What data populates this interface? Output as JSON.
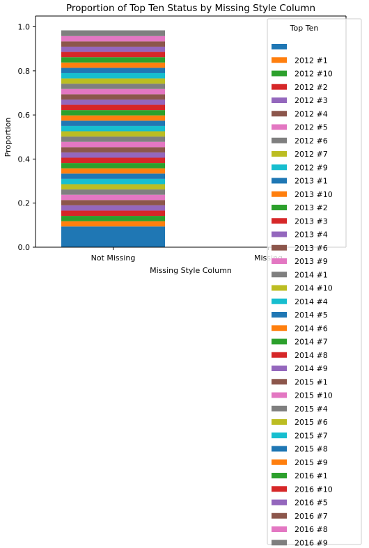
{
  "chart_data": {
    "type": "bar",
    "stacked": true,
    "title": "Proportion of Top Ten Status by Missing Style Column",
    "xlabel": "Missing Style Column",
    "ylabel": "Proportion",
    "categories": [
      "Not Missing",
      "Missing"
    ],
    "ylim": [
      0.0,
      1.0
    ],
    "yticks": [
      "0.0",
      "0.2",
      "0.4",
      "0.6",
      "0.8",
      "1.0"
    ],
    "grid": false,
    "legend": {
      "title": "Top Ten",
      "placement": "right (outside, overlapping axes)"
    },
    "series": [
      {
        "name": "",
        "values": [
          0.094,
          0
        ]
      },
      {
        "name": "2012 #1",
        "values": [
          0.024,
          0
        ]
      },
      {
        "name": "2012 #10",
        "values": [
          0.024,
          0
        ]
      },
      {
        "name": "2012 #2",
        "values": [
          0.024,
          0
        ]
      },
      {
        "name": "2012 #3",
        "values": [
          0.024,
          0
        ]
      },
      {
        "name": "2012 #4",
        "values": [
          0.024,
          0
        ]
      },
      {
        "name": "2012 #5",
        "values": [
          0.024,
          0
        ]
      },
      {
        "name": "2012 #6",
        "values": [
          0.024,
          0
        ]
      },
      {
        "name": "2012 #7",
        "values": [
          0.024,
          0
        ]
      },
      {
        "name": "2012 #9",
        "values": [
          0.024,
          0
        ]
      },
      {
        "name": "2013 #1",
        "values": [
          0.024,
          0
        ]
      },
      {
        "name": "2013 #10",
        "values": [
          0.024,
          0
        ]
      },
      {
        "name": "2013 #2",
        "values": [
          0.024,
          0
        ]
      },
      {
        "name": "2013 #3",
        "values": [
          0.024,
          0
        ]
      },
      {
        "name": "2013 #4",
        "values": [
          0.024,
          0
        ]
      },
      {
        "name": "2013 #6",
        "values": [
          0.024,
          0
        ]
      },
      {
        "name": "2013 #9",
        "values": [
          0.024,
          0
        ]
      },
      {
        "name": "2014 #1",
        "values": [
          0.024,
          0
        ]
      },
      {
        "name": "2014 #10",
        "values": [
          0.024,
          0
        ]
      },
      {
        "name": "2014 #4",
        "values": [
          0.024,
          0
        ]
      },
      {
        "name": "2014 #5",
        "values": [
          0.024,
          0
        ]
      },
      {
        "name": "2014 #6",
        "values": [
          0.024,
          0
        ]
      },
      {
        "name": "2014 #7",
        "values": [
          0.024,
          0
        ]
      },
      {
        "name": "2014 #8",
        "values": [
          0.024,
          0
        ]
      },
      {
        "name": "2014 #9",
        "values": [
          0.024,
          0
        ]
      },
      {
        "name": "2015 #1",
        "values": [
          0.024,
          0
        ]
      },
      {
        "name": "2015 #10",
        "values": [
          0.024,
          0
        ]
      },
      {
        "name": "2015 #4",
        "values": [
          0.024,
          0
        ]
      },
      {
        "name": "2015 #6",
        "values": [
          0.024,
          0
        ]
      },
      {
        "name": "2015 #7",
        "values": [
          0.024,
          0
        ]
      },
      {
        "name": "2015 #8",
        "values": [
          0.024,
          0
        ]
      },
      {
        "name": "2015 #9",
        "values": [
          0.024,
          0
        ]
      },
      {
        "name": "2016 #1",
        "values": [
          0.024,
          0
        ]
      },
      {
        "name": "2016 #10",
        "values": [
          0.024,
          0
        ]
      },
      {
        "name": "2016 #5",
        "values": [
          0.024,
          0
        ]
      },
      {
        "name": "2016 #7",
        "values": [
          0.024,
          0
        ]
      },
      {
        "name": "2016 #8",
        "values": [
          0.024,
          0
        ]
      },
      {
        "name": "2016 #9",
        "values": [
          0.026,
          0
        ]
      }
    ],
    "colors": [
      "#1f77b4",
      "#ff7f0e",
      "#2ca02c",
      "#d62728",
      "#9467bd",
      "#8c564b",
      "#e377c2",
      "#7f7f7f",
      "#bcbd22",
      "#17becf"
    ]
  }
}
